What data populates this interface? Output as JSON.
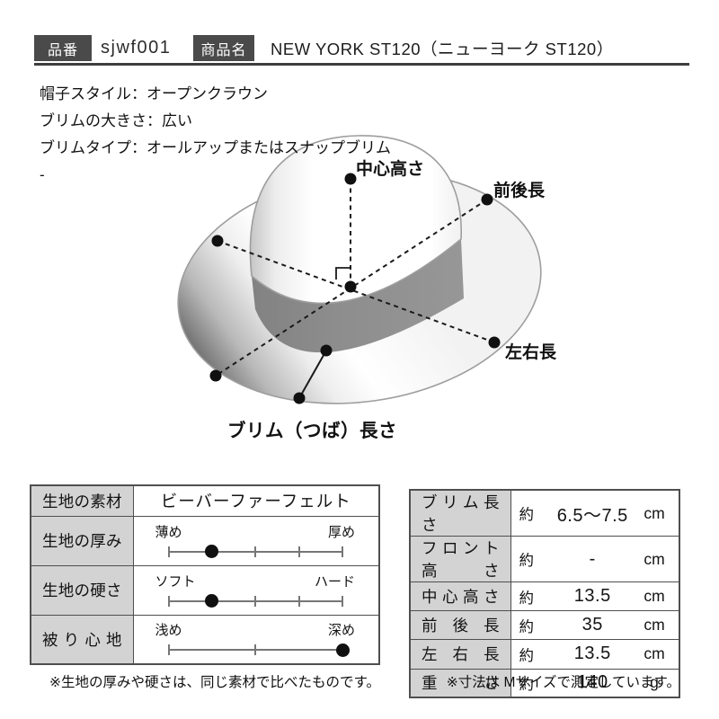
{
  "header": {
    "item_no_label": "品番",
    "item_no_value": "sjwf001",
    "product_name_label": "商品名",
    "product_name_value": "NEW YORK ST120（ニューヨーク ST120）"
  },
  "specs": {
    "line1": "帽子スタイル：オープンクラウン",
    "line2": "ブリムの大きさ：広い",
    "line3": "ブリムタイプ：オールアップまたはスナップブリム",
    "line4": "-"
  },
  "diagram": {
    "labels": {
      "center_height": "中心高さ",
      "front_back_length": "前後長",
      "left_right_length": "左右長",
      "brim_length": "ブリム（つば）長さ"
    }
  },
  "fabric_table": {
    "rows": [
      {
        "label": "生地の素材",
        "type": "text",
        "value": "ビーバーファーフェルト"
      },
      {
        "label": "生地の厚み",
        "type": "slider",
        "left": "薄め",
        "right": "厚め",
        "ticks": [
          0,
          25,
          50,
          75,
          100
        ],
        "dot": 25
      },
      {
        "label": "生地の硬さ",
        "type": "slider",
        "left": "ソフト",
        "right": "ハード",
        "ticks": [
          0,
          25,
          50,
          75,
          100
        ],
        "dot": 25
      },
      {
        "label": "被り心地",
        "type": "slider",
        "left": "浅め",
        "right": "深め",
        "ticks": [
          0,
          50,
          100
        ],
        "dot": 100
      }
    ],
    "note": "※生地の厚みや硬さは、同じ素材で比べたものです。"
  },
  "size_table": {
    "rows": [
      {
        "label": "ブリム長さ",
        "approx": "約",
        "value": "6.5〜7.5",
        "unit": "cm"
      },
      {
        "label": "フロント高さ",
        "approx": "約",
        "value": "-",
        "unit": "cm"
      },
      {
        "label": "中心高さ",
        "approx": "約",
        "value": "13.5",
        "unit": "cm"
      },
      {
        "label": "前後長",
        "approx": "約",
        "value": "35",
        "unit": "cm"
      },
      {
        "label": "左右長",
        "approx": "約",
        "value": "13.5",
        "unit": "cm"
      },
      {
        "label": "重さ",
        "approx": "約",
        "value": "140",
        "unit": "g"
      }
    ],
    "note": "※寸法は Mサイズで測定しています。"
  },
  "colors": {
    "label_box_bg": "#4a4a4a",
    "table_header_bg": "#d3d3d3",
    "table_border": "#4f4f4f",
    "hat_band": "#8d8d8d",
    "line_color": "#1a1a1a"
  }
}
